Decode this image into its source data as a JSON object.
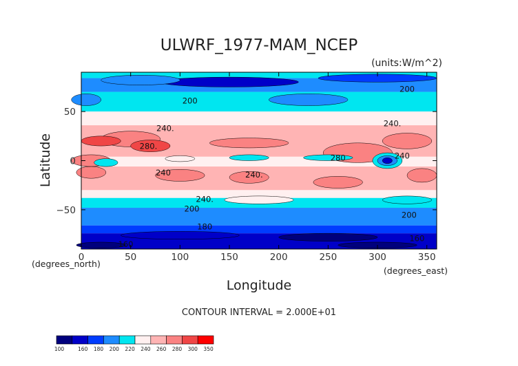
{
  "chart_data": {
    "type": "heatmap",
    "title": "ULWRF_1977-MAM_NCEP",
    "units": "(units:W/m^2)",
    "xlabel": "Longitude",
    "ylabel": "Latitude",
    "x_unit_label": "(degrees_east)",
    "y_unit_label": "(degrees_north)",
    "xlim": [
      0,
      360
    ],
    "ylim": [
      -90,
      90
    ],
    "x_ticks": [
      0,
      50,
      100,
      150,
      200,
      250,
      300,
      350
    ],
    "y_ticks": [
      50,
      0,
      -50
    ],
    "x_tick_labels": [
      "0",
      "50",
      "100",
      "150",
      "200",
      "250",
      "300",
      "350"
    ],
    "y_tick_labels": [
      "50",
      "0",
      "−50"
    ],
    "contour_interval": "CONTOUR INTERVAL = 2.000E+01",
    "contour_labels": [
      {
        "text": "200",
        "lon": 110,
        "lat": 58
      },
      {
        "text": "200",
        "lon": 330,
        "lat": 70
      },
      {
        "text": "240.",
        "lon": 85,
        "lat": 30
      },
      {
        "text": "240.",
        "lon": 315,
        "lat": 35
      },
      {
        "text": "280.",
        "lon": 68,
        "lat": 12
      },
      {
        "text": "280",
        "lon": 260,
        "lat": 0
      },
      {
        "text": "240",
        "lon": 325,
        "lat": 2
      },
      {
        "text": "240",
        "lon": 83,
        "lat": -15
      },
      {
        "text": "240.",
        "lon": 175,
        "lat": -17
      },
      {
        "text": "240.",
        "lon": 125,
        "lat": -42
      },
      {
        "text": "200",
        "lon": 112,
        "lat": -52
      },
      {
        "text": "200",
        "lon": 332,
        "lat": -58
      },
      {
        "text": "180",
        "lon": 125,
        "lat": -70
      },
      {
        "text": "160",
        "lon": 340,
        "lat": -82
      },
      {
        "text": "160",
        "lon": 45,
        "lat": -88
      }
    ],
    "colorbar": {
      "levels": [
        "100",
        "160",
        "180",
        "200",
        "220",
        "240",
        "260",
        "280",
        "300",
        "350"
      ],
      "colors": [
        "#00007d",
        "#0000c8",
        "#003cff",
        "#1e8cff",
        "#00e6f0",
        "#fff0f0",
        "#ffb4b4",
        "#fa8282",
        "#f04646",
        "#ff0000"
      ]
    }
  }
}
